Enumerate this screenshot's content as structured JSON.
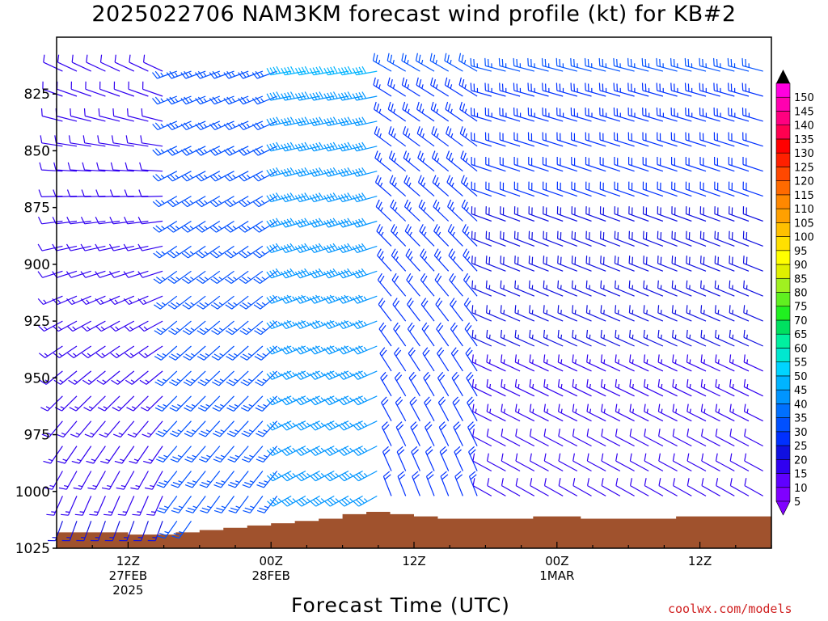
{
  "title": "2025022706 NAM3KM forecast wind profile (kt) for KB#2",
  "xlabel": "Forecast Time (UTC)",
  "credit": "coolwx.com/models",
  "colors": {
    "terrain": "#a0522d",
    "colorbar": [
      "#8000ff",
      "#6000ff",
      "#3000f0",
      "#1010e0",
      "#0030ff",
      "#0050ff",
      "#0070ff",
      "#0095ff",
      "#00b4ff",
      "#00d4ff",
      "#00e8d0",
      "#00f0a0",
      "#00e060",
      "#20f020",
      "#60f020",
      "#a0f020",
      "#e0f000",
      "#ffff00",
      "#ffe000",
      "#ffc000",
      "#ffa000",
      "#ff8800",
      "#ff6a00",
      "#ff4800",
      "#ff2000",
      "#ff0000",
      "#ff0050",
      "#ff0080",
      "#ff00b0",
      "#ff00e0"
    ]
  },
  "chart_data": {
    "type": "wind-barb-time-height",
    "title": "2025022706 NAM3KM forecast wind profile (kt) for KB#2",
    "xlabel": "Forecast Time (UTC)",
    "y_axis": {
      "label": "",
      "ticks": [
        825,
        850,
        875,
        900,
        925,
        950,
        975,
        1000,
        1025
      ],
      "range": [
        800,
        1025
      ],
      "inverted": true
    },
    "x_axis": {
      "range_hours": [
        0,
        60
      ],
      "ticks": [
        {
          "hour": 6,
          "label": [
            "12Z",
            "27FEB",
            "2025"
          ]
        },
        {
          "hour": 18,
          "label": [
            "00Z",
            "28FEB"
          ]
        },
        {
          "hour": 30,
          "label": [
            "12Z"
          ]
        },
        {
          "hour": 42,
          "label": [
            "00Z",
            "1MAR"
          ]
        },
        {
          "hour": 54,
          "label": [
            "12Z"
          ]
        }
      ]
    },
    "colorbar": {
      "ticks": [
        5,
        10,
        15,
        20,
        25,
        30,
        35,
        40,
        45,
        50,
        55,
        60,
        65,
        70,
        75,
        80,
        85,
        90,
        95,
        100,
        105,
        110,
        115,
        120,
        125,
        130,
        135,
        140,
        145,
        150
      ]
    },
    "surface_pressure": {
      "hours": [
        0,
        2,
        4,
        6,
        8,
        10,
        12,
        14,
        16,
        18,
        20,
        22,
        24,
        26,
        28,
        30,
        32,
        34,
        36,
        38,
        40,
        42,
        44,
        46,
        48,
        50,
        52,
        54,
        56,
        58,
        60
      ],
      "values": [
        1018,
        1018,
        1018,
        1019,
        1019,
        1018,
        1017,
        1016,
        1015,
        1014,
        1013,
        1012,
        1010,
        1009,
        1010,
        1011,
        1012,
        1012,
        1012,
        1012,
        1011,
        1011,
        1012,
        1012,
        1012,
        1012,
        1011,
        1011,
        1011,
        1011,
        1009
      ]
    },
    "wind_profile": [
      {
        "hour_start": 0,
        "hour_end": 9,
        "low_levels": {
          "direction_deg": 200,
          "speed_kt": 15
        },
        "upper_levels": {
          "direction_deg": 295,
          "speed_kt": 10
        }
      },
      {
        "hour_start": 9,
        "hour_end": 19,
        "low_levels": {
          "direction_deg": 215,
          "speed_kt": 25
        },
        "upper_levels": {
          "direction_deg": 250,
          "speed_kt": 25
        }
      },
      {
        "hour_start": 19,
        "hour_end": 27,
        "low_levels": {
          "direction_deg": 240,
          "speed_kt": 35
        },
        "upper_levels": {
          "direction_deg": 260,
          "speed_kt": 40
        }
      },
      {
        "hour_start": 27,
        "hour_end": 36,
        "low_levels": {
          "direction_deg": 340,
          "speed_kt": 20
        },
        "upper_levels": {
          "direction_deg": 300,
          "speed_kt": 25
        }
      },
      {
        "hour_start": 36,
        "hour_end": 60,
        "low_levels": {
          "direction_deg": 300,
          "speed_kt": 10
        },
        "upper_levels": {
          "direction_deg": 285,
          "speed_kt": 25
        }
      }
    ]
  }
}
